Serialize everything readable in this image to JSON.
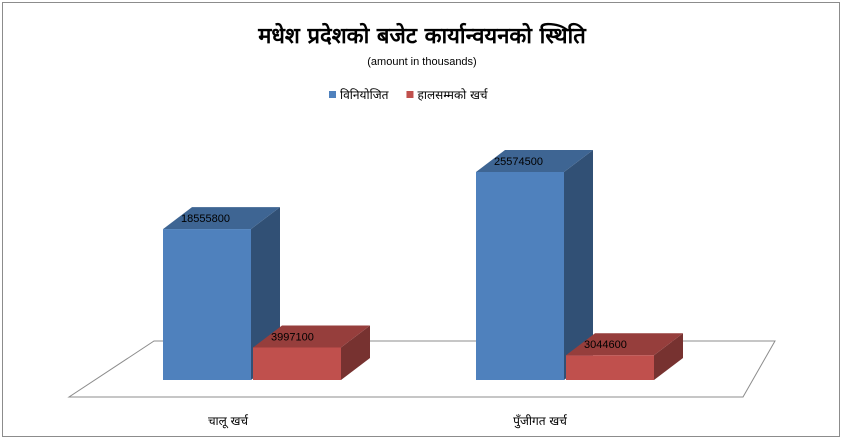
{
  "chart_data": {
    "type": "bar",
    "title": "मधेश प्रदेशको बजेट कार्यान्वयनको स्थिति",
    "subtitle": "(amount in thousands)",
    "categories": [
      "चालू खर्च",
      "पुँजीगत खर्च"
    ],
    "series": [
      {
        "name": "विनियोजित",
        "values": [
          18555800,
          25574500
        ],
        "color": "#4f81bd"
      },
      {
        "name": "हालसम्मको खर्च",
        "values": [
          3997100,
          3044600
        ],
        "color": "#c0504d"
      }
    ],
    "ylim": [
      0,
      30000000
    ],
    "legend_position": "top",
    "grid": false,
    "style": "3d-column"
  }
}
